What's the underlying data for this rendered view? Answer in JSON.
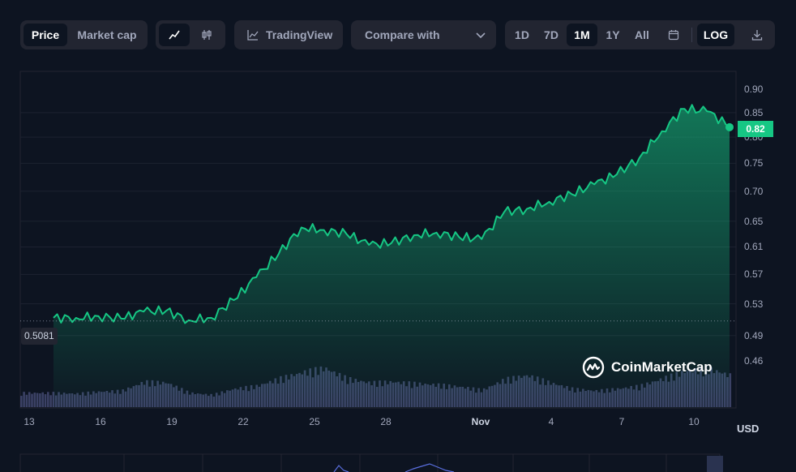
{
  "toolbar": {
    "price_tab": "Price",
    "market_cap_tab": "Market cap",
    "line_chart_icon": "line-chart-icon",
    "candle_chart_icon": "candlestick-icon",
    "tradingview_label": "TradingView",
    "compare_label": "Compare with",
    "ranges": [
      "1D",
      "7D",
      "1M",
      "1Y",
      "All"
    ],
    "active_range": "1M",
    "log_label": "LOG"
  },
  "brand": {
    "name": "CoinMarketCap"
  },
  "axis": {
    "y_ticks": [
      "0.90",
      "0.85",
      "0.80",
      "0.75",
      "0.70",
      "0.65",
      "0.61",
      "0.57",
      "0.53",
      "0.49",
      "0.46"
    ],
    "x_ticks": [
      "13",
      "16",
      "19",
      "22",
      "25",
      "28",
      "Nov",
      "4",
      "7",
      "10"
    ],
    "currency": "USD"
  },
  "current_price_label": "0.82",
  "baseline_label": "0.5081",
  "colors": {
    "line": "#16c784",
    "background": "#0d1421",
    "volume": "#3b4165"
  },
  "chart_data": {
    "type": "line",
    "y_scale": "log",
    "ylim": [
      0.43,
      0.93
    ],
    "x": [
      "13",
      "14",
      "15",
      "16",
      "17",
      "18",
      "19",
      "20",
      "21",
      "22",
      "23",
      "24",
      "25",
      "26",
      "27",
      "28",
      "29",
      "30",
      "31",
      "Nov",
      "2",
      "3",
      "4",
      "5",
      "6",
      "7",
      "8",
      "9",
      "10",
      "11",
      "12"
    ],
    "values": [
      0.512,
      0.512,
      0.514,
      0.511,
      0.52,
      0.521,
      0.509,
      0.512,
      0.535,
      0.566,
      0.6,
      0.64,
      0.636,
      0.63,
      0.613,
      0.616,
      0.628,
      0.632,
      0.625,
      0.622,
      0.665,
      0.67,
      0.682,
      0.695,
      0.712,
      0.73,
      0.76,
      0.812,
      0.858,
      0.853,
      0.822
    ],
    "baseline": 0.5081,
    "last_price": 0.82,
    "volume_relative": [
      0.35,
      0.33,
      0.38,
      0.4,
      0.62,
      0.6,
      0.35,
      0.3,
      0.45,
      0.52,
      0.7,
      0.85,
      0.96,
      0.7,
      0.6,
      0.62,
      0.58,
      0.55,
      0.5,
      0.42,
      0.68,
      0.78,
      0.6,
      0.45,
      0.4,
      0.45,
      0.52,
      0.7,
      0.88,
      0.95,
      0.78
    ]
  }
}
